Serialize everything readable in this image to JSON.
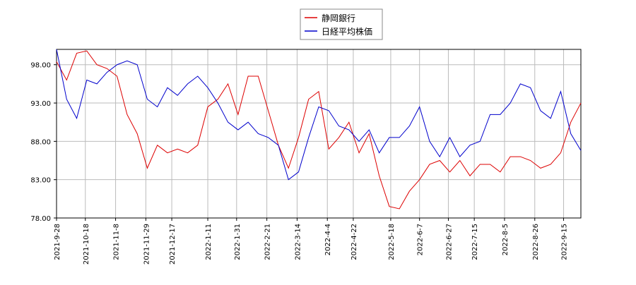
{
  "chart_data": {
    "type": "line",
    "x": [
      "2021-9-28",
      "2021-10-5",
      "2021-10-12",
      "2021-10-19",
      "2021-10-26",
      "2021-11-2",
      "2021-11-9",
      "2021-11-16",
      "2021-11-23",
      "2021-11-30",
      "2021-12-7",
      "2021-12-14",
      "2021-12-21",
      "2021-12-28",
      "2022-1-4",
      "2022-1-11",
      "2022-1-18",
      "2022-1-25",
      "2022-2-1",
      "2022-2-8",
      "2022-2-15",
      "2022-2-22",
      "2022-3-1",
      "2022-3-8",
      "2022-3-15",
      "2022-3-22",
      "2022-3-29",
      "2022-4-5",
      "2022-4-12",
      "2022-4-19",
      "2022-4-26",
      "2022-5-3",
      "2022-5-10",
      "2022-5-17",
      "2022-5-24",
      "2022-5-31",
      "2022-6-7",
      "2022-6-14",
      "2022-6-21",
      "2022-6-28",
      "2022-7-5",
      "2022-7-12",
      "2022-7-19",
      "2022-7-26",
      "2022-8-2",
      "2022-8-9",
      "2022-8-16",
      "2022-8-23",
      "2022-8-30",
      "2022-9-6",
      "2022-9-13",
      "2022-9-20",
      "2022-9-27"
    ],
    "series": [
      {
        "name": "静岡銀行",
        "color": "#dd0000",
        "values": [
          98.4,
          96,
          99.5,
          99.8,
          98,
          97.5,
          96.5,
          91.5,
          89,
          84.5,
          87.5,
          86.5,
          87,
          86.5,
          87.5,
          92.5,
          93.5,
          95.5,
          91.5,
          96.5,
          96.5,
          92,
          87.5,
          84.5,
          88.5,
          93.5,
          94.5,
          87,
          88.5,
          90.5,
          86.5,
          89,
          83.5,
          79.5,
          79.2,
          81.5,
          83,
          85,
          85.5,
          84,
          85.5,
          83.5,
          85,
          85,
          84,
          86,
          86,
          85.5,
          84.5,
          85,
          86.5,
          90.5,
          93
        ]
      },
      {
        "name": "日経平均株価",
        "color": "#0000cc",
        "values": [
          100,
          93.5,
          91,
          96,
          95.5,
          97,
          98,
          98.5,
          98,
          93.5,
          92.5,
          95,
          94,
          95.5,
          96.5,
          95,
          93,
          90.5,
          89.5,
          90.5,
          89,
          88.5,
          87.5,
          83,
          84,
          88.5,
          92.5,
          92,
          90,
          89.5,
          88,
          89.5,
          86.5,
          88.5,
          88.5,
          90,
          92.5,
          88,
          86,
          88.5,
          86,
          87.5,
          88,
          91.5,
          91.5,
          93,
          95.5,
          95,
          92,
          91,
          94.5,
          89,
          86.8
        ]
      }
    ],
    "xlim": [
      "2021-9-28",
      "2022-9-27"
    ],
    "xticks": [
      "2021-9-28",
      "2021-10-18",
      "2021-11-8",
      "2021-11-29",
      "2021-12-17",
      "2022-1-11",
      "2022-1-31",
      "2022-2-21",
      "2022-3-14",
      "2022-4-4",
      "2022-4-22",
      "2022-5-18",
      "2022-6-7",
      "2022-6-27",
      "2022-7-15",
      "2022-8-5",
      "2022-8-26",
      "2022-9-15"
    ],
    "ylim": [
      78,
      100
    ],
    "yticks": [
      {
        "value": 78,
        "label": "78.00"
      },
      {
        "value": 83,
        "label": "83.00"
      },
      {
        "value": 88,
        "label": "88.00"
      },
      {
        "value": 93,
        "label": "93.00"
      },
      {
        "value": 98,
        "label": "98.00"
      }
    ],
    "grid": true,
    "legend": "top"
  }
}
